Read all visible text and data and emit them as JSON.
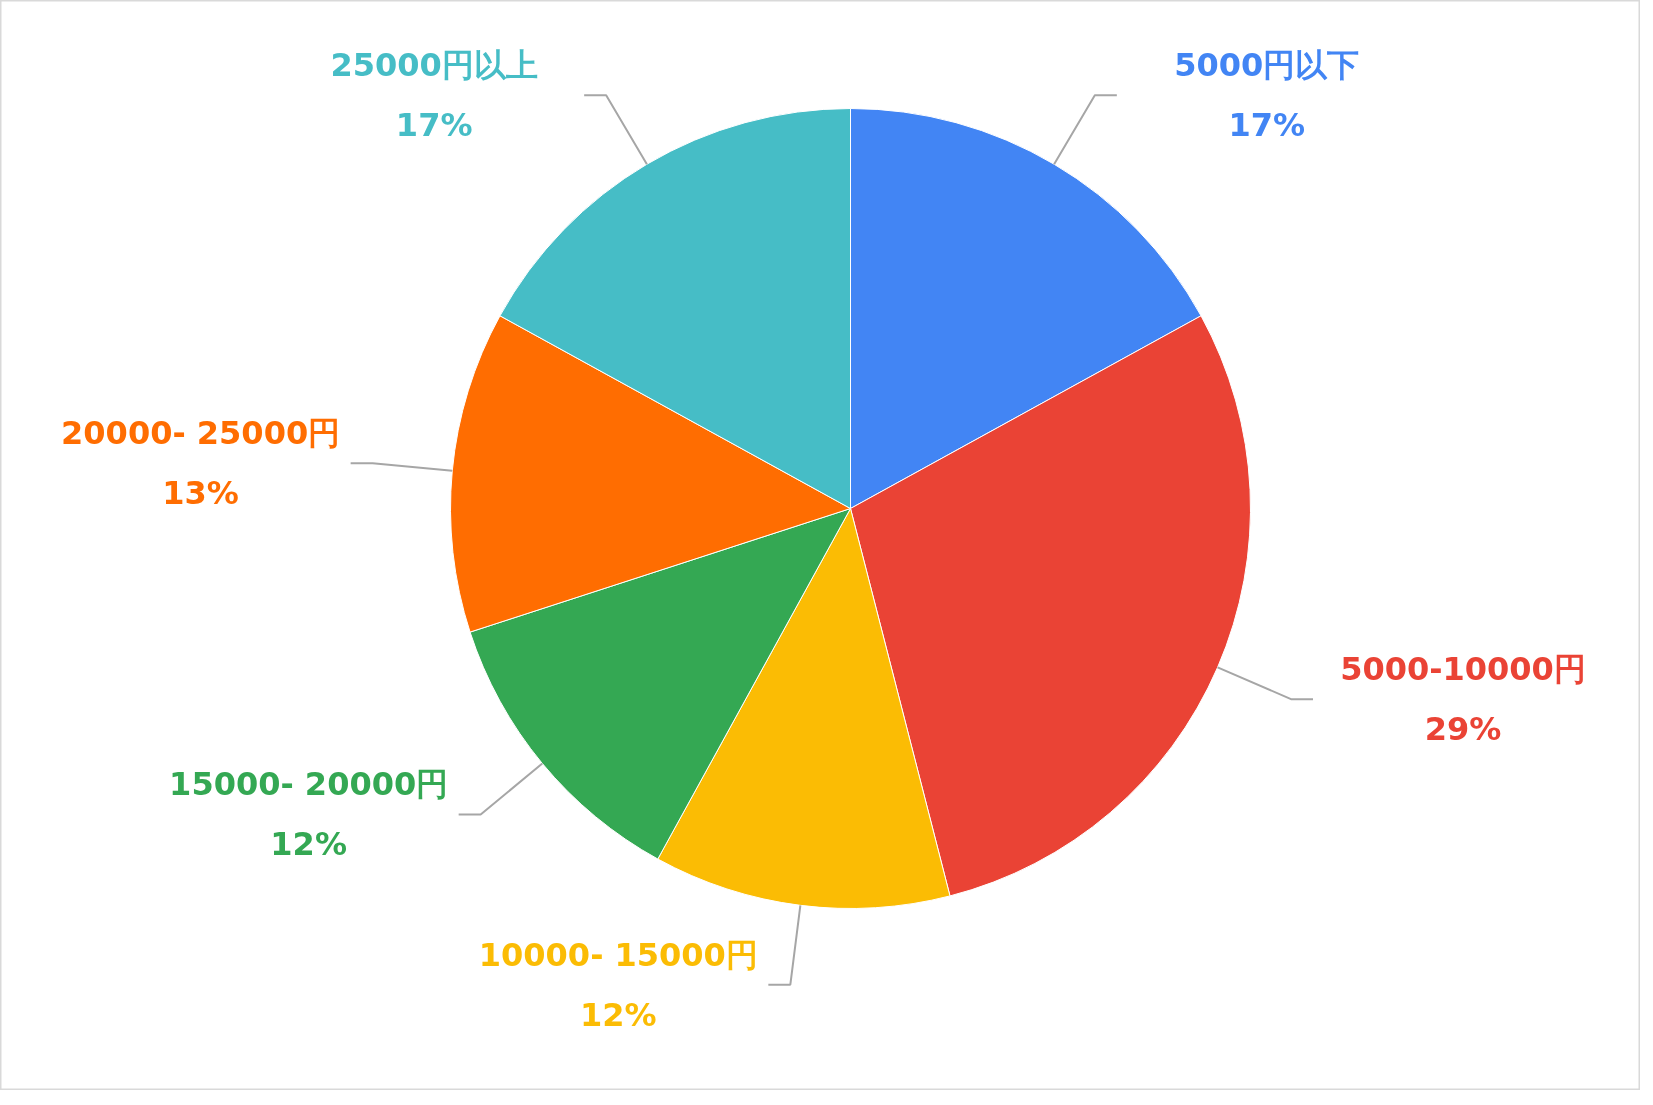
{
  "chart_data": {
    "type": "pie",
    "categories": [
      "5000円以下",
      "5000-10000円",
      "10000- 15000円",
      "15000- 20000円",
      "20000- 25000円",
      "25000円以上"
    ],
    "values": [
      17,
      29,
      12,
      12,
      13,
      17
    ],
    "colors": [
      "#4285f4",
      "#ea4335",
      "#fbbc04",
      "#34a853",
      "#ff6d01",
      "#46bdc6"
    ],
    "value_labels": [
      "17%",
      "29%",
      "12%",
      "12%",
      "13%",
      "17%"
    ]
  }
}
